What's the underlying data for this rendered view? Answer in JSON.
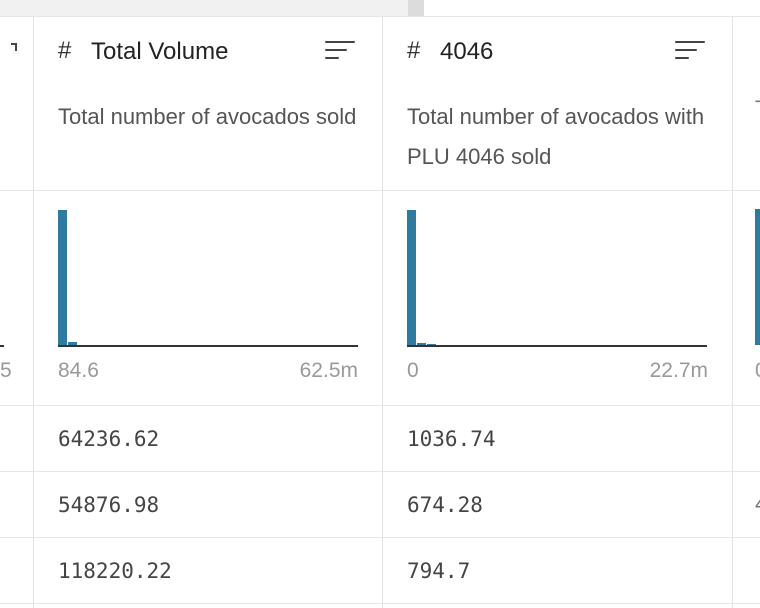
{
  "colors": {
    "bar": "#2e7aa1",
    "axis": "#333333",
    "muted_text": "#999999",
    "border": "#e3e3e3"
  },
  "left_partial": {
    "range_max_fragment": "5"
  },
  "columns": [
    {
      "type_icon": "hash-icon",
      "title": "Total Volume",
      "description": "Total number of avocados sold",
      "histogram": {
        "range_min": "84.6",
        "range_max": "62.5m"
      },
      "rows": [
        "64236.62",
        "54876.98",
        "118220.22"
      ]
    },
    {
      "type_icon": "hash-icon",
      "title": "4046",
      "description": "Total number of avocados with PLU 4046 sold",
      "histogram": {
        "range_min": "0",
        "range_max": "22.7m"
      },
      "rows": [
        "1036.74",
        "674.28",
        "794.7"
      ]
    }
  ],
  "right_partial": {
    "description_fragment": "T",
    "range_min_fragment": "0",
    "row_fragments": [
      "",
      "4",
      ""
    ]
  },
  "chart_data": [
    {
      "type": "bar",
      "title": "",
      "xlim": [
        84.6,
        62500000
      ],
      "values_relative": [
        1.0,
        0.03,
        0.01,
        0,
        0,
        0,
        0,
        0,
        0,
        0,
        0,
        0,
        0,
        0,
        0,
        0,
        0,
        0,
        0,
        0,
        0,
        0,
        0,
        0,
        0,
        0,
        0,
        0,
        0,
        0
      ]
    },
    {
      "type": "bar",
      "title": "",
      "xlim": [
        0,
        22700000
      ],
      "values_relative": [
        1.0,
        0.025,
        0.012,
        0,
        0,
        0,
        0,
        0,
        0,
        0,
        0,
        0,
        0,
        0,
        0,
        0,
        0,
        0,
        0,
        0,
        0,
        0,
        0,
        0,
        0,
        0,
        0,
        0,
        0,
        0
      ]
    }
  ]
}
